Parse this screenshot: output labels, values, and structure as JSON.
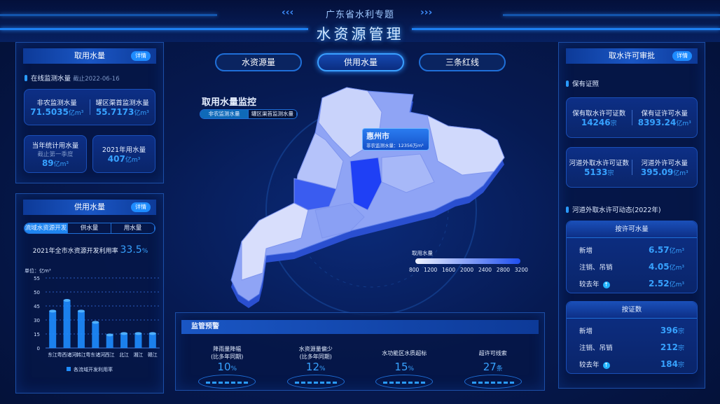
{
  "header": {
    "subtitle": "广东省水利专题",
    "title": "水资源管理"
  },
  "nav": [
    {
      "label": "水资源量"
    },
    {
      "label": "供用水量",
      "active": true
    },
    {
      "label": "三条红线"
    }
  ],
  "intake": {
    "title": "取用水量",
    "more": "详情",
    "section": "在线监测水量",
    "as_of": "截止2022-06-16",
    "c1": {
      "label": "非农监测水量",
      "value": "71.5035",
      "unit": "亿m³"
    },
    "c2": {
      "label": "罐区渠首监测水量",
      "value": "55.7173",
      "unit": "亿m³"
    },
    "c3": {
      "label": "当年统计用水量",
      "sub": "截止第一季度",
      "value": "89",
      "unit": "亿m³"
    },
    "c4": {
      "label": "2021年用水量",
      "value": "407",
      "unit": "亿m³"
    }
  },
  "supply": {
    "title": "供用水量",
    "more": "详情",
    "tabs": [
      "流域水资源开发利用",
      "供水量",
      "用水量"
    ],
    "rate_label": "2021年全市水资源开发利用率",
    "rate_value": "33.5",
    "rate_unit": "%"
  },
  "chart_data": {
    "type": "bar",
    "ylabel": "单位：亿m³",
    "yticks": [
      0,
      15,
      30,
      45,
      50,
      55
    ],
    "categories": [
      "东江",
      "粤西诸河",
      "韩江",
      "粤东诸河",
      "西江",
      "北江",
      "湘江",
      "赣江"
    ],
    "values": [
      39.5,
      47,
      39.5,
      27.5,
      14,
      15.5,
      15.5,
      15.5
    ],
    "legend": "各流域开发利用率",
    "legend_position": "bottom",
    "grid": true,
    "color": "#1e8cff"
  },
  "map": {
    "title": "取用水量监控",
    "toggle": [
      "非农监测水量",
      "罐区渠首监测水量"
    ],
    "tooltip": {
      "city": "惠州市",
      "label": "非农监测水量：",
      "value": "12356",
      "unit": "万m³"
    },
    "legend": {
      "title": "取用水量",
      "ticks": [
        "800",
        "1200",
        "1600",
        "2000",
        "2400",
        "2800",
        "3200"
      ]
    }
  },
  "warning": {
    "title": "监管预警",
    "items": [
      {
        "label": "降雨量降幅",
        "sub": "(比多年同期)",
        "value": "10",
        "unit": "%"
      },
      {
        "label": "水资源量偏少",
        "sub": "(比多年同期)",
        "value": "12",
        "unit": "%"
      },
      {
        "label": "水功能区水质超标",
        "sub": "",
        "value": "15",
        "unit": "%"
      },
      {
        "label": "超许可线索",
        "sub": "",
        "value": "27",
        "unit": "条"
      }
    ]
  },
  "permit": {
    "title": "取水许可审批",
    "more": "详情",
    "section1": "保有证照",
    "a1": {
      "label": "保有取水许可证数",
      "value": "14246",
      "unit": "宗"
    },
    "a2": {
      "label": "保有证许可水量",
      "value": "8393.24",
      "unit": "亿m³"
    },
    "b1": {
      "label": "河道外取水许可证数",
      "value": "5133",
      "unit": "宗"
    },
    "b2": {
      "label": "河道外许可水量",
      "value": "395.09",
      "unit": "亿m³"
    },
    "section2": "河道外取水许可动态(2022年)",
    "byvol": {
      "title": "按许可水量",
      "rows": [
        {
          "label": "新增",
          "value": "6.57",
          "unit": "亿m³"
        },
        {
          "label": "注销、吊销",
          "value": "4.05",
          "unit": "亿m³"
        },
        {
          "label": "较去年",
          "value": "2.52",
          "unit": "亿m³",
          "up": true
        }
      ]
    },
    "bycount": {
      "title": "按证数",
      "rows": [
        {
          "label": "新增",
          "value": "396",
          "unit": "宗"
        },
        {
          "label": "注销、吊销",
          "value": "212",
          "unit": "宗"
        },
        {
          "label": "较去年",
          "value": "184",
          "unit": "宗",
          "up": true
        }
      ]
    }
  }
}
